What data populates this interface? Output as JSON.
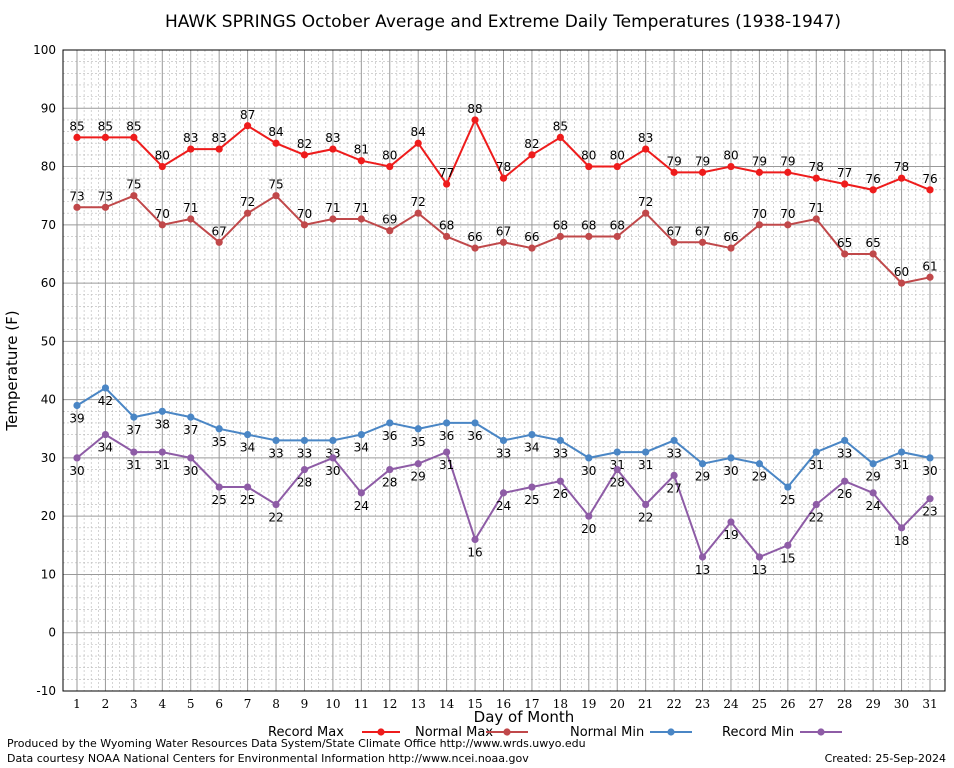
{
  "chart_data": {
    "type": "line",
    "title": "HAWK SPRINGS October Average and Extreme Daily Temperatures (1938-1947)",
    "xlabel": "Day of Month",
    "ylabel": "Temperature (F)",
    "xlim": [
      1,
      31
    ],
    "ylim": [
      -10,
      100
    ],
    "yticks": [
      -10,
      0,
      10,
      20,
      30,
      40,
      50,
      60,
      70,
      80,
      90,
      100
    ],
    "x": [
      1,
      2,
      3,
      4,
      5,
      6,
      7,
      8,
      9,
      10,
      11,
      12,
      13,
      14,
      15,
      16,
      17,
      18,
      19,
      20,
      21,
      22,
      23,
      24,
      25,
      26,
      27,
      28,
      29,
      30,
      31
    ],
    "grid": true,
    "legend_position": "bottom",
    "series": [
      {
        "name": "Record Max",
        "color": "#ee1c1c",
        "label_pos": "above",
        "values": [
          85,
          85,
          85,
          80,
          83,
          83,
          87,
          84,
          82,
          83,
          81,
          80,
          84,
          77,
          88,
          78,
          82,
          85,
          80,
          80,
          83,
          79,
          79,
          80,
          79,
          79,
          78,
          77,
          76,
          78,
          76
        ]
      },
      {
        "name": "Normal Max",
        "color": "#c0484a",
        "label_pos": "above",
        "values": [
          73,
          73,
          75,
          70,
          71,
          67,
          72,
          75,
          70,
          71,
          71,
          69,
          72,
          68,
          66,
          67,
          66,
          68,
          68,
          68,
          72,
          67,
          67,
          66,
          70,
          70,
          71,
          65,
          65,
          60,
          61
        ]
      },
      {
        "name": "Normal Min",
        "color": "#4a86c5",
        "label_pos": "below",
        "values": [
          39,
          42,
          37,
          38,
          37,
          35,
          34,
          33,
          33,
          33,
          34,
          36,
          35,
          36,
          36,
          33,
          34,
          33,
          30,
          31,
          31,
          33,
          29,
          30,
          29,
          25,
          31,
          33,
          29,
          31,
          30
        ]
      },
      {
        "name": "Record Min",
        "color": "#8e5ca6",
        "label_pos": "below",
        "values": [
          30,
          34,
          31,
          31,
          30,
          25,
          25,
          22,
          28,
          30,
          24,
          28,
          29,
          31,
          16,
          24,
          25,
          26,
          20,
          28,
          22,
          27,
          13,
          19,
          13,
          15,
          22,
          26,
          24,
          18,
          23
        ]
      }
    ]
  },
  "footer": {
    "produced_by": "Produced by the Wyoming Water Resources Data System/State Climate Office http://www.wrds.uwyo.edu",
    "data_courtesy": "Data courtesy NOAA National Centers for Environmental Information http://www.ncei.noaa.gov",
    "created": "Created:  25-Sep-2024"
  }
}
